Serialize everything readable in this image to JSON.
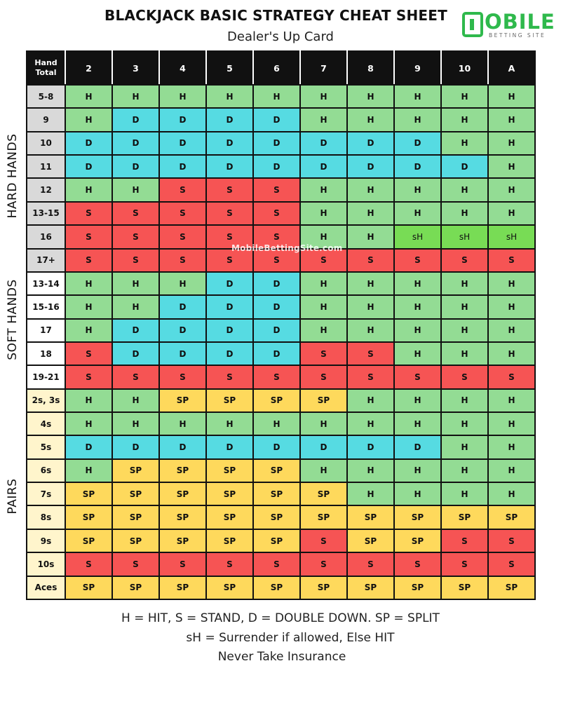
{
  "header": {
    "title": "BLACKJACK BASIC STRATEGY CHEAT SHEET",
    "subtitle": "Dealer's Up Card"
  },
  "logo": {
    "word": "OBILE",
    "sub": "BETTING SITE"
  },
  "side_labels": {
    "hard": "HARD HANDS",
    "soft": "SOFT HANDS",
    "pairs": "PAIRS"
  },
  "watermark": "MobileBettingSite.com",
  "colors": {
    "hit": "#93dc94",
    "double": "#56dbe2",
    "stand": "#f65454",
    "split": "#fed95c",
    "surrender": "#78dc55"
  },
  "table": {
    "corner_line1": "Hand",
    "corner_line2": "Total",
    "dealer_cards": [
      "2",
      "3",
      "4",
      "5",
      "6",
      "7",
      "8",
      "9",
      "10",
      "A"
    ],
    "rows": [
      {
        "group": "hard",
        "hand": "5-8",
        "actions": [
          "H",
          "H",
          "H",
          "H",
          "H",
          "H",
          "H",
          "H",
          "H",
          "H"
        ]
      },
      {
        "group": "hard",
        "hand": "9",
        "actions": [
          "H",
          "D",
          "D",
          "D",
          "D",
          "H",
          "H",
          "H",
          "H",
          "H"
        ]
      },
      {
        "group": "hard",
        "hand": "10",
        "actions": [
          "D",
          "D",
          "D",
          "D",
          "D",
          "D",
          "D",
          "D",
          "H",
          "H"
        ]
      },
      {
        "group": "hard",
        "hand": "11",
        "actions": [
          "D",
          "D",
          "D",
          "D",
          "D",
          "D",
          "D",
          "D",
          "D",
          "H"
        ]
      },
      {
        "group": "hard",
        "hand": "12",
        "actions": [
          "H",
          "H",
          "S",
          "S",
          "S",
          "H",
          "H",
          "H",
          "H",
          "H"
        ]
      },
      {
        "group": "hard",
        "hand": "13-15",
        "actions": [
          "S",
          "S",
          "S",
          "S",
          "S",
          "H",
          "H",
          "H",
          "H",
          "H"
        ]
      },
      {
        "group": "hard",
        "hand": "16",
        "actions": [
          "S",
          "S",
          "S",
          "S",
          "S",
          "H",
          "H",
          "sH",
          "sH",
          "sH"
        ]
      },
      {
        "group": "hard",
        "hand": "17+",
        "actions": [
          "S",
          "S",
          "S",
          "S",
          "S",
          "S",
          "S",
          "S",
          "S",
          "S"
        ]
      },
      {
        "group": "soft",
        "hand": "13-14",
        "actions": [
          "H",
          "H",
          "H",
          "D",
          "D",
          "H",
          "H",
          "H",
          "H",
          "H"
        ]
      },
      {
        "group": "soft",
        "hand": "15-16",
        "actions": [
          "H",
          "H",
          "D",
          "D",
          "D",
          "H",
          "H",
          "H",
          "H",
          "H"
        ]
      },
      {
        "group": "soft",
        "hand": "17",
        "actions": [
          "H",
          "D",
          "D",
          "D",
          "D",
          "H",
          "H",
          "H",
          "H",
          "H"
        ]
      },
      {
        "group": "soft",
        "hand": "18",
        "actions": [
          "S",
          "D",
          "D",
          "D",
          "D",
          "S",
          "S",
          "H",
          "H",
          "H"
        ]
      },
      {
        "group": "soft",
        "hand": "19-21",
        "actions": [
          "S",
          "S",
          "S",
          "S",
          "S",
          "S",
          "S",
          "S",
          "S",
          "S"
        ]
      },
      {
        "group": "pair",
        "hand": "2s, 3s",
        "actions": [
          "H",
          "H",
          "SP",
          "SP",
          "SP",
          "SP",
          "H",
          "H",
          "H",
          "H"
        ]
      },
      {
        "group": "pair",
        "hand": "4s",
        "actions": [
          "H",
          "H",
          "H",
          "H",
          "H",
          "H",
          "H",
          "H",
          "H",
          "H"
        ]
      },
      {
        "group": "pair",
        "hand": "5s",
        "actions": [
          "D",
          "D",
          "D",
          "D",
          "D",
          "D",
          "D",
          "D",
          "H",
          "H"
        ]
      },
      {
        "group": "pair",
        "hand": "6s",
        "actions": [
          "H",
          "SP",
          "SP",
          "SP",
          "SP",
          "H",
          "H",
          "H",
          "H",
          "H"
        ]
      },
      {
        "group": "pair",
        "hand": "7s",
        "actions": [
          "SP",
          "SP",
          "SP",
          "SP",
          "SP",
          "SP",
          "H",
          "H",
          "H",
          "H"
        ]
      },
      {
        "group": "pair",
        "hand": "8s",
        "actions": [
          "SP",
          "SP",
          "SP",
          "SP",
          "SP",
          "SP",
          "SP",
          "SP",
          "SP",
          "SP"
        ]
      },
      {
        "group": "pair",
        "hand": "9s",
        "actions": [
          "SP",
          "SP",
          "SP",
          "SP",
          "SP",
          "S",
          "SP",
          "SP",
          "S",
          "S"
        ]
      },
      {
        "group": "pair",
        "hand": "10s",
        "actions": [
          "S",
          "S",
          "S",
          "S",
          "S",
          "S",
          "S",
          "S",
          "S",
          "S"
        ]
      },
      {
        "group": "pair",
        "hand": "Aces",
        "actions": [
          "SP",
          "SP",
          "SP",
          "SP",
          "SP",
          "SP",
          "SP",
          "SP",
          "SP",
          "SP"
        ]
      }
    ]
  },
  "legend": {
    "line1": "H = HIT, S = STAND, D = DOUBLE DOWN. SP = SPLIT",
    "line2": "sH = Surrender if allowed, Else HIT",
    "line3": "Never Take Insurance"
  }
}
